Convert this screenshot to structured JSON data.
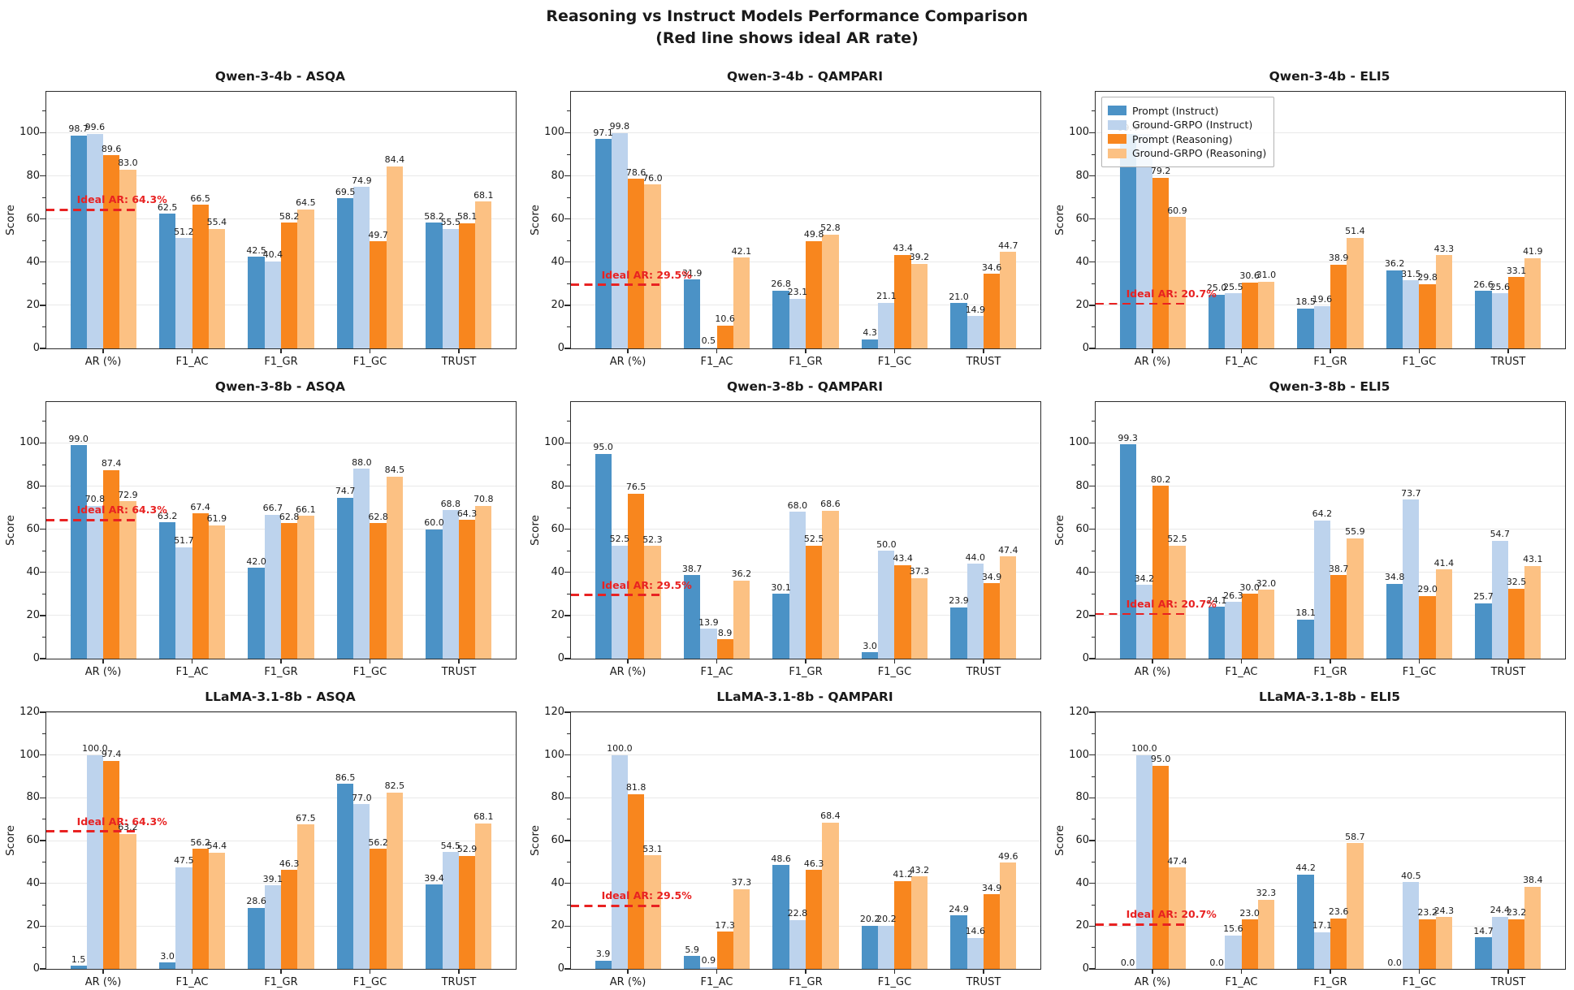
{
  "header": {
    "title_line1": "Reasoning vs Instruct Models Performance Comparison",
    "title_line2": "(Red line shows ideal AR rate)"
  },
  "legend": {
    "position": "upper-left of Qwen-3-4b ELI5 subplot",
    "entries": [
      {
        "label": "Prompt (Instruct)",
        "color": "#4b92c6"
      },
      {
        "label": "Ground-GRPO (Instruct)",
        "color": "#bdd3ed"
      },
      {
        "label": "Prompt (Reasoning)",
        "color": "#f8861e"
      },
      {
        "label": "Ground-GRPO (Reasoning)",
        "color": "#fcc183"
      }
    ]
  },
  "colors": {
    "ideal_ar_red": "#e82222",
    "grid": "#e9e9e9",
    "spine": "#2b2b2b"
  },
  "chart_data": [
    {
      "type": "bar",
      "title": "Qwen-3-4b - ASQA",
      "ylabel": "Score",
      "categories": [
        "AR (%)",
        "F1_AC",
        "F1_GR",
        "F1_GC",
        "TRUST"
      ],
      "ylim": [
        0,
        119
      ],
      "yticks": [
        0,
        20,
        40,
        60,
        80,
        100
      ],
      "grid": true,
      "ideal_ar": {
        "value": 64.3,
        "label": "Ideal AR: 64.3%"
      },
      "legend_visible": false,
      "series": [
        {
          "name": "Prompt (Instruct)",
          "values": [
            98.7,
            62.5,
            42.5,
            69.5,
            58.2
          ]
        },
        {
          "name": "Ground-GRPO (Instruct)",
          "values": [
            99.6,
            51.2,
            40.4,
            74.9,
            55.5
          ]
        },
        {
          "name": "Prompt (Reasoning)",
          "values": [
            89.6,
            66.5,
            58.2,
            49.7,
            58.1
          ]
        },
        {
          "name": "Ground-GRPO (Reasoning)",
          "values": [
            83.0,
            55.4,
            64.5,
            84.4,
            68.1
          ]
        }
      ]
    },
    {
      "type": "bar",
      "title": "Qwen-3-4b - QAMPARI",
      "ylabel": "Score",
      "categories": [
        "AR (%)",
        "F1_AC",
        "F1_GR",
        "F1_GC",
        "TRUST"
      ],
      "ylim": [
        0,
        119
      ],
      "yticks": [
        0,
        20,
        40,
        60,
        80,
        100
      ],
      "grid": true,
      "ideal_ar": {
        "value": 29.5,
        "label": "Ideal AR: 29.5%"
      },
      "legend_visible": false,
      "series": [
        {
          "name": "Prompt (Instruct)",
          "values": [
            97.1,
            31.9,
            26.8,
            4.3,
            21.0
          ]
        },
        {
          "name": "Ground-GRPO (Instruct)",
          "values": [
            99.8,
            0.5,
            23.1,
            21.1,
            14.9
          ]
        },
        {
          "name": "Prompt (Reasoning)",
          "values": [
            78.6,
            10.6,
            49.8,
            43.4,
            34.6
          ]
        },
        {
          "name": "Ground-GRPO (Reasoning)",
          "values": [
            76.0,
            42.1,
            52.8,
            39.2,
            44.7
          ]
        }
      ]
    },
    {
      "type": "bar",
      "title": "Qwen-3-4b - ELI5",
      "ylabel": "Score",
      "categories": [
        "AR (%)",
        "F1_AC",
        "F1_GR",
        "F1_GC",
        "TRUST"
      ],
      "ylim": [
        0,
        119
      ],
      "yticks": [
        0,
        20,
        40,
        60,
        80,
        100
      ],
      "grid": true,
      "ideal_ar": {
        "value": 20.7,
        "label": "Ideal AR: 20.7%"
      },
      "legend_visible": true,
      "series": [
        {
          "name": "Prompt (Instruct)",
          "values": [
            99.4,
            25.0,
            18.5,
            36.2,
            26.6
          ]
        },
        {
          "name": "Ground-GRPO (Instruct)",
          "values": [
            99.6,
            25.5,
            19.6,
            31.5,
            25.6
          ]
        },
        {
          "name": "Prompt (Reasoning)",
          "values": [
            79.2,
            30.6,
            38.9,
            29.8,
            33.1
          ]
        },
        {
          "name": "Ground-GRPO (Reasoning)",
          "values": [
            60.9,
            31.0,
            51.4,
            43.3,
            41.9
          ]
        }
      ]
    },
    {
      "type": "bar",
      "title": "Qwen-3-8b - ASQA",
      "ylabel": "Score",
      "categories": [
        "AR (%)",
        "F1_AC",
        "F1_GR",
        "F1_GC",
        "TRUST"
      ],
      "ylim": [
        0,
        119
      ],
      "yticks": [
        0,
        20,
        40,
        60,
        80,
        100
      ],
      "grid": true,
      "ideal_ar": {
        "value": 64.3,
        "label": "Ideal AR: 64.3%"
      },
      "legend_visible": false,
      "series": [
        {
          "name": "Prompt (Instruct)",
          "values": [
            99.0,
            63.2,
            42.0,
            74.7,
            60.0
          ]
        },
        {
          "name": "Ground-GRPO (Instruct)",
          "values": [
            70.8,
            51.7,
            66.7,
            88.0,
            68.8
          ]
        },
        {
          "name": "Prompt (Reasoning)",
          "values": [
            87.4,
            67.4,
            62.8,
            62.8,
            64.3
          ]
        },
        {
          "name": "Ground-GRPO (Reasoning)",
          "values": [
            72.9,
            61.9,
            66.1,
            84.5,
            70.8
          ]
        }
      ]
    },
    {
      "type": "bar",
      "title": "Qwen-3-8b - QAMPARI",
      "ylabel": "Score",
      "categories": [
        "AR (%)",
        "F1_AC",
        "F1_GR",
        "F1_GC",
        "TRUST"
      ],
      "ylim": [
        0,
        119
      ],
      "yticks": [
        0,
        20,
        40,
        60,
        80,
        100
      ],
      "grid": true,
      "ideal_ar": {
        "value": 29.5,
        "label": "Ideal AR: 29.5%"
      },
      "legend_visible": false,
      "series": [
        {
          "name": "Prompt (Instruct)",
          "values": [
            95.0,
            38.7,
            30.1,
            3.0,
            23.9
          ]
        },
        {
          "name": "Ground-GRPO (Instruct)",
          "values": [
            52.5,
            13.9,
            68.0,
            50.0,
            44.0
          ]
        },
        {
          "name": "Prompt (Reasoning)",
          "values": [
            76.5,
            8.9,
            52.5,
            43.4,
            34.9
          ]
        },
        {
          "name": "Ground-GRPO (Reasoning)",
          "values": [
            52.3,
            36.2,
            68.6,
            37.3,
            47.4
          ]
        }
      ]
    },
    {
      "type": "bar",
      "title": "Qwen-3-8b - ELI5",
      "ylabel": "Score",
      "categories": [
        "AR (%)",
        "F1_AC",
        "F1_GR",
        "F1_GC",
        "TRUST"
      ],
      "ylim": [
        0,
        119
      ],
      "yticks": [
        0,
        20,
        40,
        60,
        80,
        100
      ],
      "grid": true,
      "ideal_ar": {
        "value": 20.7,
        "label": "Ideal AR: 20.7%"
      },
      "legend_visible": false,
      "series": [
        {
          "name": "Prompt (Instruct)",
          "values": [
            99.3,
            24.1,
            18.1,
            34.8,
            25.7
          ]
        },
        {
          "name": "Ground-GRPO (Instruct)",
          "values": [
            34.2,
            26.3,
            64.2,
            73.7,
            54.7
          ]
        },
        {
          "name": "Prompt (Reasoning)",
          "values": [
            80.2,
            30.0,
            38.7,
            29.0,
            32.5
          ]
        },
        {
          "name": "Ground-GRPO (Reasoning)",
          "values": [
            52.5,
            32.0,
            55.9,
            41.4,
            43.1
          ]
        }
      ]
    },
    {
      "type": "bar",
      "title": "LLaMA-3.1-8b - ASQA",
      "ylabel": "Score",
      "categories": [
        "AR (%)",
        "F1_AC",
        "F1_GR",
        "F1_GC",
        "TRUST"
      ],
      "ylim": [
        0,
        120
      ],
      "yticks": [
        0,
        20,
        40,
        60,
        80,
        100,
        120
      ],
      "grid": true,
      "ideal_ar": {
        "value": 64.3,
        "label": "Ideal AR: 64.3%"
      },
      "legend_visible": false,
      "series": [
        {
          "name": "Prompt (Instruct)",
          "values": [
            1.5,
            3.0,
            28.6,
            86.5,
            39.4
          ]
        },
        {
          "name": "Ground-GRPO (Instruct)",
          "values": [
            100.0,
            47.5,
            39.1,
            77.0,
            54.5
          ]
        },
        {
          "name": "Prompt (Reasoning)",
          "values": [
            97.4,
            56.2,
            46.3,
            56.2,
            52.9
          ]
        },
        {
          "name": "Ground-GRPO (Reasoning)",
          "values": [
            63.2,
            54.4,
            67.5,
            82.5,
            68.1
          ]
        }
      ]
    },
    {
      "type": "bar",
      "title": "LLaMA-3.1-8b - QAMPARI",
      "ylabel": "Score",
      "categories": [
        "AR (%)",
        "F1_AC",
        "F1_GR",
        "F1_GC",
        "TRUST"
      ],
      "ylim": [
        0,
        120
      ],
      "yticks": [
        0,
        20,
        40,
        60,
        80,
        100,
        120
      ],
      "grid": true,
      "ideal_ar": {
        "value": 29.5,
        "label": "Ideal AR: 29.5%"
      },
      "legend_visible": false,
      "series": [
        {
          "name": "Prompt (Instruct)",
          "values": [
            3.9,
            5.9,
            48.6,
            20.2,
            24.9
          ]
        },
        {
          "name": "Ground-GRPO (Instruct)",
          "values": [
            100.0,
            0.9,
            22.8,
            20.2,
            14.6
          ]
        },
        {
          "name": "Prompt (Reasoning)",
          "values": [
            81.8,
            17.3,
            46.3,
            41.2,
            34.9
          ]
        },
        {
          "name": "Ground-GRPO (Reasoning)",
          "values": [
            53.1,
            37.3,
            68.4,
            43.2,
            49.6
          ]
        }
      ]
    },
    {
      "type": "bar",
      "title": "LLaMA-3.1-8b - ELI5",
      "ylabel": "Score",
      "categories": [
        "AR (%)",
        "F1_AC",
        "F1_GR",
        "F1_GC",
        "TRUST"
      ],
      "ylim": [
        0,
        120
      ],
      "yticks": [
        0,
        20,
        40,
        60,
        80,
        100,
        120
      ],
      "grid": true,
      "ideal_ar": {
        "value": 20.7,
        "label": "Ideal AR: 20.7%"
      },
      "legend_visible": false,
      "series": [
        {
          "name": "Prompt (Instruct)",
          "values": [
            0.0,
            0.0,
            44.2,
            0.0,
            14.7
          ]
        },
        {
          "name": "Ground-GRPO (Instruct)",
          "values": [
            100.0,
            15.6,
            17.1,
            40.5,
            24.4
          ]
        },
        {
          "name": "Prompt (Reasoning)",
          "values": [
            95.0,
            23.0,
            23.6,
            23.2,
            23.2
          ]
        },
        {
          "name": "Ground-GRPO (Reasoning)",
          "values": [
            47.4,
            32.3,
            58.7,
            24.3,
            38.4
          ]
        }
      ]
    }
  ]
}
